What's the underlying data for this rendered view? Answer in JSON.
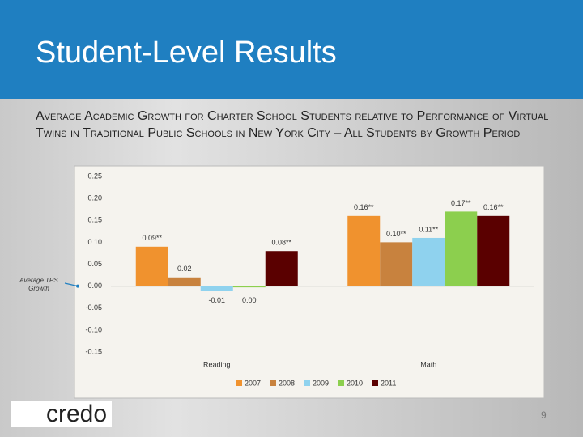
{
  "slide": {
    "title": "Student-Level Results",
    "subtitle": "Average Academic Growth for Charter School Students relative to Performance of Virtual Twins in Traditional Public Schools in New York City – All Students by Growth Period",
    "logo": "credo",
    "page_number": "9"
  },
  "chart_data": {
    "type": "bar",
    "categories": [
      "Reading",
      "Math"
    ],
    "series": [
      {
        "name": "2007",
        "color": "#f0922e",
        "values": [
          0.09,
          0.16
        ],
        "value_labels": [
          "0.09**",
          "0.16**"
        ]
      },
      {
        "name": "2008",
        "color": "#c8823e",
        "values": [
          0.02,
          0.1
        ],
        "value_labels": [
          "0.02",
          "0.10**"
        ]
      },
      {
        "name": "2009",
        "color": "#8fd2ee",
        "values": [
          -0.01,
          0.11
        ],
        "value_labels": [
          "-0.01",
          "0.11**"
        ]
      },
      {
        "name": "2010",
        "color": "#8ccf4e",
        "values": [
          0.0,
          0.17
        ],
        "value_labels": [
          "0.00",
          "0.17**"
        ]
      },
      {
        "name": "2011",
        "color": "#5a0000",
        "values": [
          0.08,
          0.16
        ],
        "value_labels": [
          "0.08**",
          "0.16**"
        ]
      }
    ],
    "ylim": [
      -0.15,
      0.25
    ],
    "yticks": [
      0.25,
      {
        "value": 0.2,
        "label": "0.20"
      },
      0.15,
      {
        "value": 0.1,
        "label": "0.10"
      },
      0.05,
      {
        "value": 0,
        "label": "0.00"
      },
      -0.05,
      {
        "value": -0.1,
        "label": "-0.10"
      },
      -0.15
    ],
    "annotation": "Average TPS Growth",
    "grid": false,
    "legend": "bottom"
  }
}
